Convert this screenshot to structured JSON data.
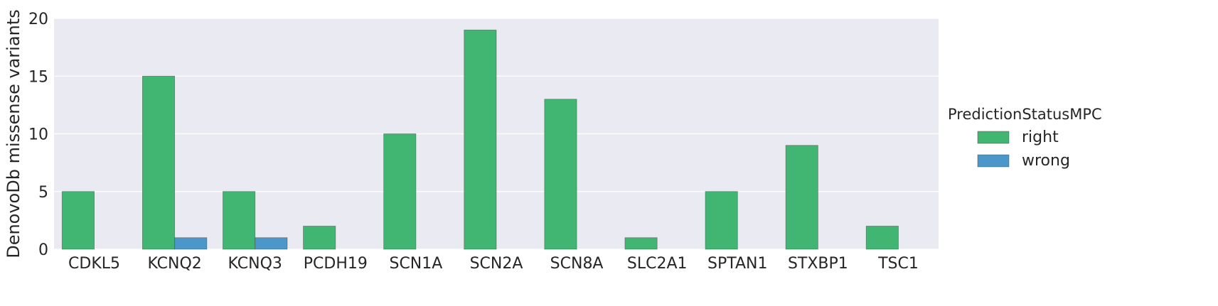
{
  "chart_data": {
    "type": "bar",
    "title": "",
    "xlabel": "",
    "ylabel": "DenovoDb missense variants",
    "categories": [
      "CDKL5",
      "KCNQ2",
      "KCNQ3",
      "PCDH19",
      "SCN1A",
      "SCN2A",
      "SCN8A",
      "SLC2A1",
      "SPTAN1",
      "STXBP1",
      "TSC1"
    ],
    "series": [
      {
        "name": "right",
        "color": "#41b673",
        "values": [
          5,
          15,
          5,
          2,
          10,
          19,
          13,
          1,
          5,
          9,
          2
        ]
      },
      {
        "name": "wrong",
        "color": "#4b97c9",
        "values": [
          0,
          1,
          1,
          0,
          0,
          0,
          0,
          0,
          0,
          0,
          0
        ]
      }
    ],
    "ylim": [
      0,
      20
    ],
    "yticks": [
      0,
      5,
      10,
      15,
      20
    ],
    "grid": true,
    "legend": {
      "title": "PredictionStatusMPC",
      "position": "right"
    },
    "background_color": "#eaeaf2"
  }
}
